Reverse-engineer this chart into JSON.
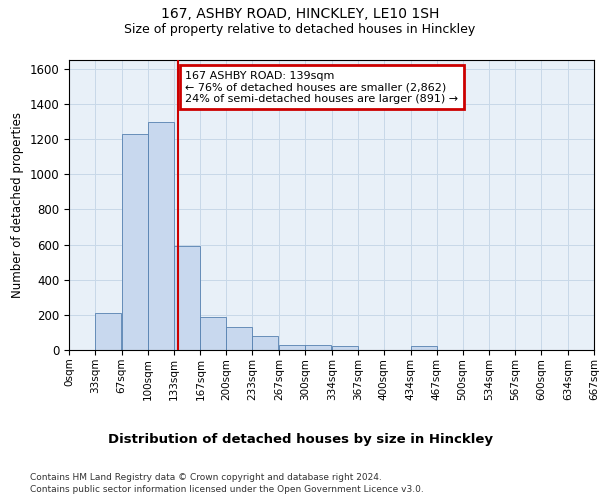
{
  "title_line1": "167, ASHBY ROAD, HINCKLEY, LE10 1SH",
  "title_line2": "Size of property relative to detached houses in Hinckley",
  "xlabel": "Distribution of detached houses by size in Hinckley",
  "ylabel": "Number of detached properties",
  "bin_edges": [
    0,
    33,
    67,
    100,
    133,
    167,
    200,
    233,
    267,
    300,
    334,
    367,
    400,
    434,
    467,
    500,
    534,
    567,
    600,
    634,
    667
  ],
  "bar_values": [
    0,
    210,
    1230,
    1300,
    590,
    190,
    130,
    80,
    30,
    30,
    20,
    0,
    0,
    20,
    0,
    0,
    0,
    0,
    0,
    0
  ],
  "bar_color": "#c8d8ee",
  "bar_edge_color": "#5580b0",
  "vline_x": 139,
  "vline_color": "#cc0000",
  "annotation_text": "167 ASHBY ROAD: 139sqm\n← 76% of detached houses are smaller (2,862)\n24% of semi-detached houses are larger (891) →",
  "annotation_box_color": "#ffffff",
  "annotation_box_edge": "#cc0000",
  "ylim": [
    0,
    1650
  ],
  "yticks": [
    0,
    200,
    400,
    600,
    800,
    1000,
    1200,
    1400,
    1600
  ],
  "tick_labels": [
    "0sqm",
    "33sqm",
    "67sqm",
    "100sqm",
    "133sqm",
    "167sqm",
    "200sqm",
    "233sqm",
    "267sqm",
    "300sqm",
    "334sqm",
    "367sqm",
    "400sqm",
    "434sqm",
    "467sqm",
    "500sqm",
    "534sqm",
    "567sqm",
    "600sqm",
    "634sqm",
    "667sqm"
  ],
  "footer_line1": "Contains HM Land Registry data © Crown copyright and database right 2024.",
  "footer_line2": "Contains public sector information licensed under the Open Government Licence v3.0.",
  "grid_color": "#c8d8e8",
  "bg_color": "#e8f0f8"
}
